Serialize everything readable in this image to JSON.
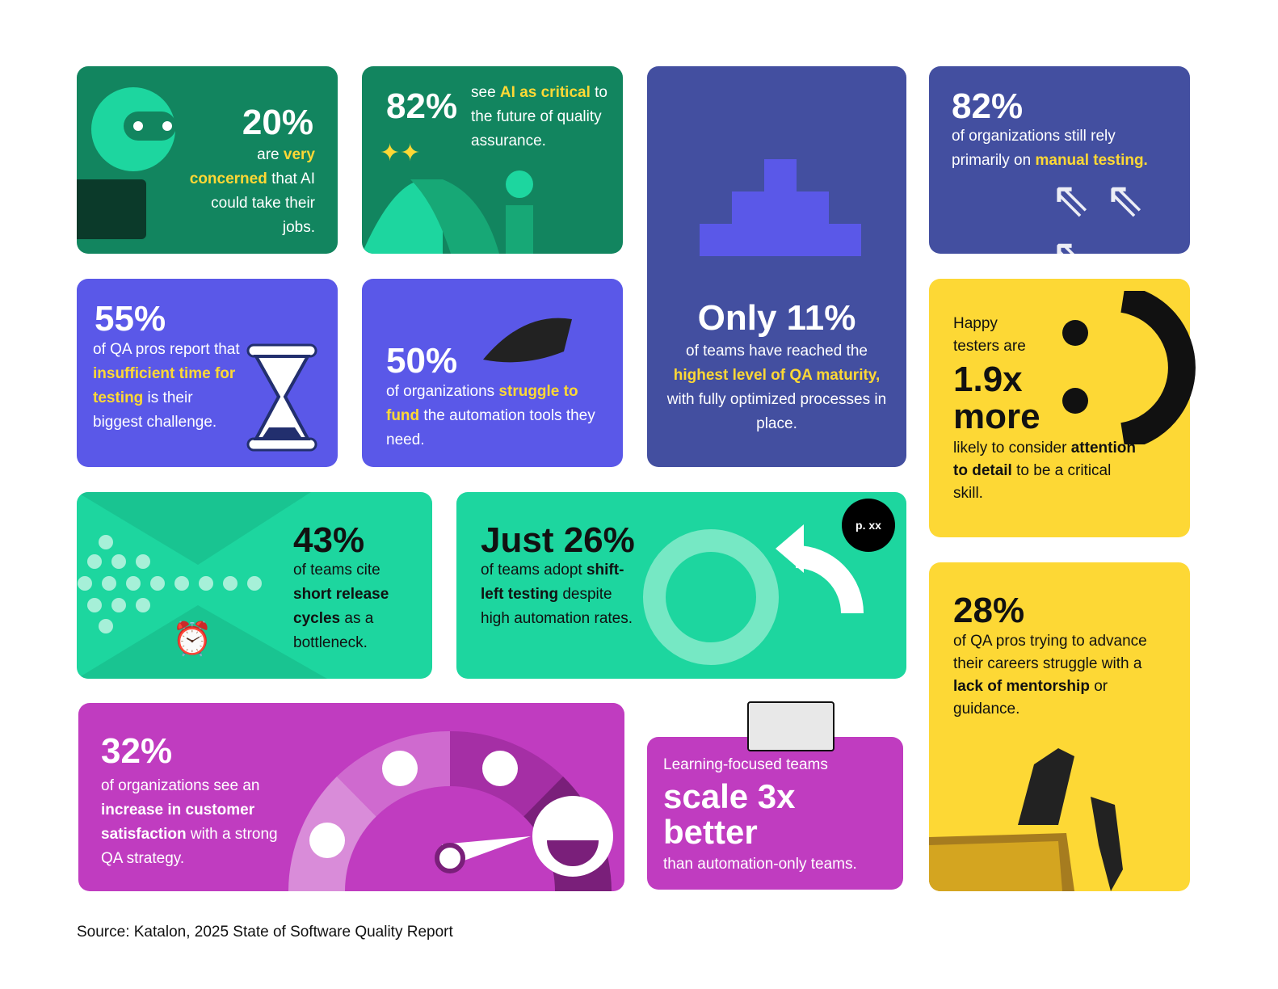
{
  "cards": {
    "c1": {
      "stat": "20%",
      "body": [
        "are ",
        "very concerned",
        " that AI could take their jobs."
      ]
    },
    "c2": {
      "stat": "82%",
      "body": [
        "see ",
        "AI as critical",
        " to the future of quality assurance."
      ]
    },
    "c3": {
      "stat": "Only 11%",
      "body": [
        "of teams have reached the ",
        "highest level of QA maturity,",
        " with fully optimized processes in place."
      ]
    },
    "c4": {
      "stat": "82%",
      "body": [
        "of organizations still rely primarily on ",
        "manual testing."
      ]
    },
    "c5": {
      "stat": "55%",
      "body": [
        "of QA pros report that ",
        "insufficient time for testing",
        " is their biggest challenge."
      ]
    },
    "c6": {
      "stat": "50%",
      "body": [
        "of organizations ",
        "struggle to fund",
        " the automation tools they need."
      ]
    },
    "c7": {
      "pre": "Happy testers are",
      "stat": "1.9x more",
      "body": [
        "likely to consider ",
        "attention to detail",
        " to be a critical skill."
      ]
    },
    "c8": {
      "stat": "43%",
      "body": [
        "of teams cite ",
        "short release cycles",
        " as a bottleneck."
      ]
    },
    "c9": {
      "stat": "Just 26%",
      "body": [
        "of teams adopt ",
        "shift-left testing",
        " despite high automation rates."
      ],
      "badge": "p. xx"
    },
    "c10": {
      "stat": "32%",
      "body": [
        "of organizations see an ",
        "increase in customer satisfaction",
        " with a strong QA strategy."
      ]
    },
    "c11": {
      "pre": "Learning-focused teams",
      "stat": "scale 3x better",
      "post": "than automation-only teams."
    },
    "c12": {
      "stat": "28%",
      "body": [
        "of QA pros trying to advance their careers struggle with a ",
        "lack of mentorship",
        " or guidance."
      ]
    }
  },
  "source": "Source: Katalon, 2025 State of Software Quality Report",
  "colors": {
    "green": "#12855f",
    "indigo": "#434fa0",
    "violet": "#5a58e8",
    "teal": "#1dd69f",
    "yellow": "#fdd835",
    "magenta": "#c03cc0"
  }
}
